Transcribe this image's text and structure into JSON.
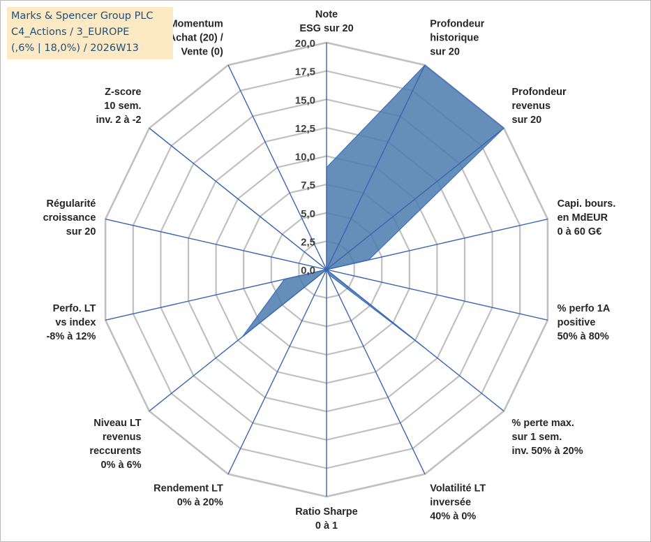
{
  "info_box": {
    "lines": [
      "Marks & Spencer Group PLC",
      "C4_Actions / 3_EUROPE",
      "(,6% | 18,0%) / 2026W13"
    ]
  },
  "colors": {
    "fill": "#4a7aad",
    "grid": "#c0c0c0",
    "spoke": "#3a66b0",
    "outline": "#3f6fc4"
  },
  "chart_data": {
    "type": "radar",
    "rmin": 0,
    "rmax": 20,
    "ticks": [
      "0,0",
      "2,5",
      "5,0",
      "7,5",
      "10,0",
      "12,5",
      "15,0",
      "17,5",
      "20,0"
    ],
    "tick_values": [
      0,
      2.5,
      5,
      7.5,
      10,
      12.5,
      15,
      17.5,
      20
    ],
    "grid": true,
    "axes": [
      {
        "label": [
          "Note",
          "ESG sur 20"
        ]
      },
      {
        "label": [
          "Profondeur",
          "historique",
          "sur 20"
        ]
      },
      {
        "label": [
          "Profondeur",
          "revenus",
          "sur 20"
        ]
      },
      {
        "label": [
          "Capi. bours.",
          "en MdEUR",
          "0 à 60 G€"
        ]
      },
      {
        "label": [
          "% perfo 1A",
          "positive",
          "50% à 80%"
        ]
      },
      {
        "label": [
          "% perte max.",
          "sur 1 sem.",
          "inv. 50% à 20%"
        ]
      },
      {
        "label": [
          "Volatilité LT",
          "inversée",
          "40% à 0%"
        ]
      },
      {
        "label": [
          "Ratio Sharpe",
          "0 à 1"
        ]
      },
      {
        "label": [
          "Rendement LT",
          "0% à 20%"
        ]
      },
      {
        "label": [
          "Niveau LT",
          "revenus",
          "reccurents",
          "0% à 6%"
        ]
      },
      {
        "label": [
          "Perfo. LT",
          "vs index",
          "-8% à 12%"
        ]
      },
      {
        "label": [
          "Régularité",
          "croissance",
          "sur 20"
        ]
      },
      {
        "label": [
          "Z-score",
          "10 sem.",
          "inv. 2 à -2"
        ]
      },
      {
        "label": [
          "Momentum",
          "Achat (20) /",
          "Vente (0)"
        ]
      }
    ],
    "series": [
      {
        "values": [
          9.0,
          20.0,
          20.0,
          3.8,
          0.0,
          11.0,
          0.5,
          0.0,
          0.0,
          9.5,
          3.8,
          0.0,
          19.8,
          0.0
        ]
      }
    ]
  }
}
